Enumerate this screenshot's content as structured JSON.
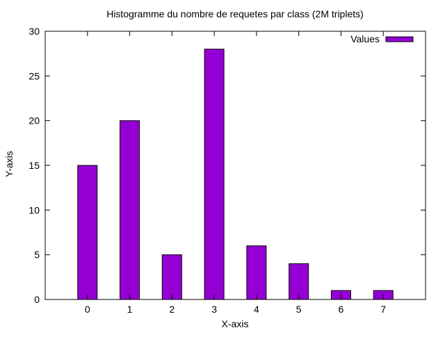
{
  "chart_data": {
    "type": "bar",
    "title": "Histogramme du nombre de requetes par class (2M triplets)",
    "xlabel": "X-axis",
    "ylabel": "Y-axis",
    "categories": [
      "0",
      "1",
      "2",
      "3",
      "4",
      "5",
      "6",
      "7"
    ],
    "series": [
      {
        "name": "Values",
        "values": [
          15,
          20,
          5,
          28,
          6,
          4,
          1,
          1
        ]
      }
    ],
    "xlim": [
      -1,
      8
    ],
    "ylim": [
      0,
      30
    ],
    "yticks": [
      0,
      5,
      10,
      15,
      20,
      25,
      30
    ],
    "grid": false,
    "legend_position": "top-right",
    "bar_color": "#9400d3",
    "border_color": "#000000"
  }
}
